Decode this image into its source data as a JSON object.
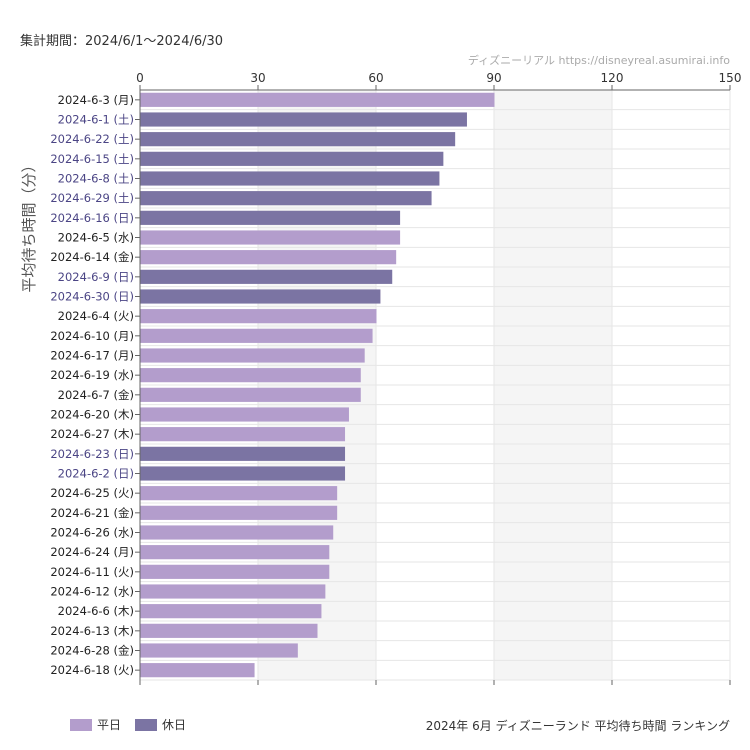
{
  "header": {
    "period": "集計期間：2024/6/1〜2024/6/30",
    "source": "ディズニーリアル https://disneyreal.asumirai.info"
  },
  "colors": {
    "weekday": "#b39dcc",
    "holiday": "#7b74a3",
    "holiday_label": "#4b4585",
    "weekday_label": "#222222"
  },
  "legend": {
    "weekday": "平日",
    "holiday": "休日"
  },
  "footer": {
    "title": "2024年 6月 ディズニーランド 平均待ち時間 ランキング"
  },
  "chart_data": {
    "type": "bar",
    "orientation": "horizontal",
    "ylabel": "平均待ち時間（分）",
    "xlim": [
      0,
      150
    ],
    "xticks": [
      "0",
      "30",
      "60",
      "90",
      "120",
      "150"
    ],
    "grid": true,
    "legend_position": "bottom-left",
    "categories": [
      "2024-6-3 (月)",
      "2024-6-1 (土)",
      "2024-6-22 (土)",
      "2024-6-15 (土)",
      "2024-6-8 (土)",
      "2024-6-29 (土)",
      "2024-6-16 (日)",
      "2024-6-5 (水)",
      "2024-6-14 (金)",
      "2024-6-9 (日)",
      "2024-6-30 (日)",
      "2024-6-4 (火)",
      "2024-6-10 (月)",
      "2024-6-17 (月)",
      "2024-6-19 (水)",
      "2024-6-7 (金)",
      "2024-6-20 (木)",
      "2024-6-27 (木)",
      "2024-6-23 (日)",
      "2024-6-2 (日)",
      "2024-6-25 (火)",
      "2024-6-21 (金)",
      "2024-6-26 (水)",
      "2024-6-24 (月)",
      "2024-6-11 (火)",
      "2024-6-12 (水)",
      "2024-6-6 (木)",
      "2024-6-13 (木)",
      "2024-6-28 (金)",
      "2024-6-18 (火)"
    ],
    "values": [
      90,
      83,
      80,
      77,
      76,
      74,
      66,
      66,
      65,
      64,
      61,
      60,
      59,
      57,
      56,
      56,
      53,
      52,
      52,
      52,
      50,
      50,
      49,
      48,
      48,
      47,
      46,
      45,
      40,
      29
    ],
    "day_type": [
      "weekday",
      "holiday",
      "holiday",
      "holiday",
      "holiday",
      "holiday",
      "holiday",
      "weekday",
      "weekday",
      "holiday",
      "holiday",
      "weekday",
      "weekday",
      "weekday",
      "weekday",
      "weekday",
      "weekday",
      "weekday",
      "holiday",
      "holiday",
      "weekday",
      "weekday",
      "weekday",
      "weekday",
      "weekday",
      "weekday",
      "weekday",
      "weekday",
      "weekday",
      "weekday"
    ]
  }
}
